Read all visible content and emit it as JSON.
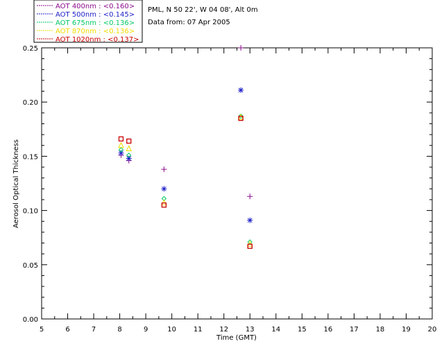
{
  "chart_data": {
    "type": "scatter",
    "title": "PML, N 50 22', W 04 08', Alt 0m",
    "subtitle": "Data from: 07 Apr 2005",
    "xlabel": "Time (GMT)",
    "ylabel": "Aerosol Optical Thickness",
    "xlim": [
      5,
      20
    ],
    "ylim": [
      0.0,
      0.25
    ],
    "x_ticks": [
      "5",
      "6",
      "7",
      "8",
      "9",
      "10",
      "11",
      "12",
      "13",
      "14",
      "15",
      "16",
      "17",
      "18",
      "19",
      "20"
    ],
    "y_ticks": [
      "0.00",
      "0.05",
      "0.10",
      "0.15",
      "0.20",
      "0.25"
    ],
    "legend_position": "top-left, outside plot",
    "series": [
      {
        "name": "AOT  400nm",
        "mean_label": ": <0.160>",
        "color": "#8b0a8b",
        "marker": "plus",
        "x": [
          8.05,
          8.35,
          9.7,
          12.65,
          13.0
        ],
        "y": [
          0.151,
          0.146,
          0.138,
          0.25,
          0.113
        ]
      },
      {
        "name": "AOT  500nm",
        "mean_label": ": <0.145>",
        "color": "#1c1cc8",
        "marker": "asterisk",
        "x": [
          8.05,
          8.35,
          9.7,
          12.65,
          13.0
        ],
        "y": [
          0.153,
          0.148,
          0.12,
          0.211,
          0.091
        ]
      },
      {
        "name": "AOT  675nm",
        "mean_label": ": <0.136>",
        "color": "#00c864",
        "marker": "diamond",
        "x": [
          8.05,
          8.35,
          9.7,
          12.65,
          13.0
        ],
        "y": [
          0.156,
          0.151,
          0.111,
          0.187,
          0.071
        ]
      },
      {
        "name": "AOT  870nm",
        "mean_label": ": <0.136>",
        "color": "#f0dc00",
        "marker": "triangle",
        "x": [
          8.05,
          8.35,
          9.7,
          12.65,
          13.0
        ],
        "y": [
          0.16,
          0.157,
          0.107,
          0.186,
          0.069
        ]
      },
      {
        "name": "AOT 1020nm",
        "mean_label": ": <0.137>",
        "color": "#c80000",
        "marker": "square",
        "x": [
          8.05,
          8.35,
          9.7,
          12.65,
          13.0
        ],
        "y": [
          0.166,
          0.164,
          0.105,
          0.185,
          0.067
        ]
      }
    ]
  }
}
